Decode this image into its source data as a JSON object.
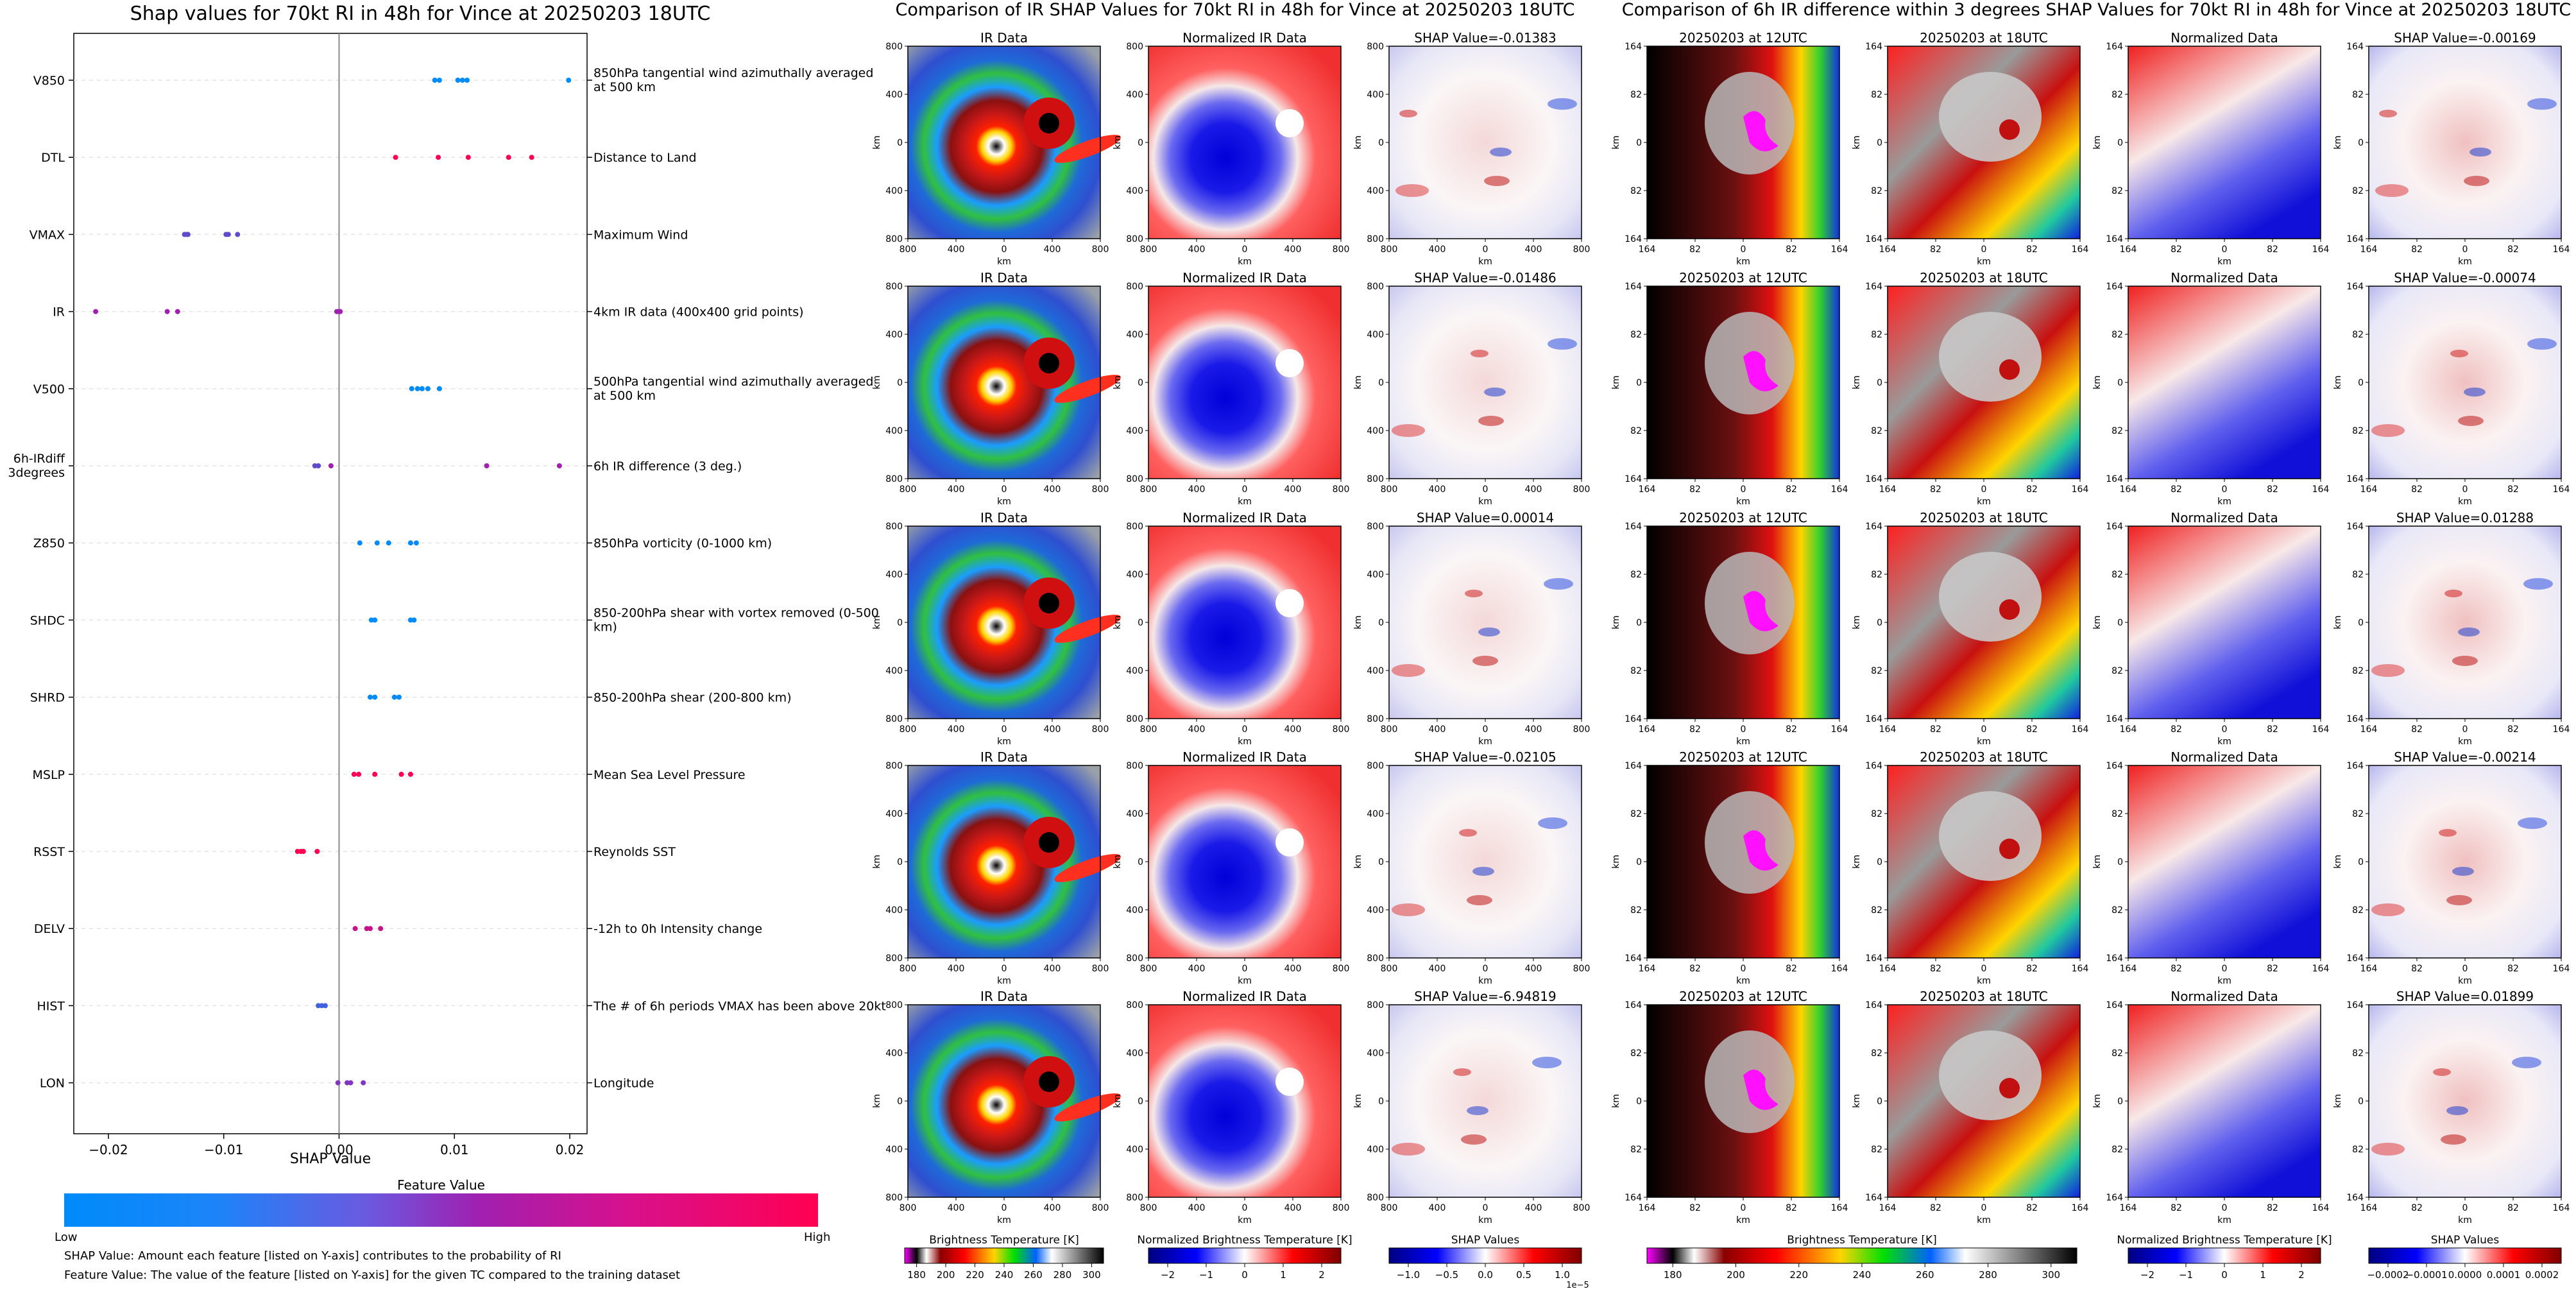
{
  "left_title": "Shap values for 70kt RI in 48h for Vince at 20250203 18UTC",
  "mid_title": "Comparison of IR SHAP Values for 70kt RI in 48h for Vince at 20250203 18UTC",
  "right_title": "Comparison of 6h IR difference within 3 degrees SHAP Values for 70kt RI in 48h for Vince at 20250203 18UTC",
  "colorbar": {
    "title": "Feature Value",
    "low": "Low",
    "high": "High"
  },
  "notes": [
    "SHAP Value: Amount each feature [listed on Y-axis] contributes to the probability of RI",
    "Feature Value: The value of the feature [listed on Y-axis] for the given TC compared to the training dataset"
  ],
  "colors": {
    "low": "#008bfb",
    "mid": "#a020b0",
    "high": "#ff0052"
  },
  "ir_panels": {
    "col_titles": [
      "IR Data",
      "Normalized IR Data"
    ],
    "shap_titles": [
      "SHAP Value=-0.01383",
      "SHAP Value=-0.01486",
      "SHAP Value=0.00014",
      "SHAP Value=-0.02105",
      "SHAP Value=-6.94819"
    ],
    "ytick_labels": [
      "800",
      "400",
      "0",
      "400",
      "800"
    ],
    "xtick_labels": [
      "800",
      "400",
      "0",
      "400",
      "800"
    ],
    "axis_label": "km"
  },
  "diff_panels": {
    "col_titles": [
      "20250203 at 12UTC",
      "20250203 at 18UTC",
      "Normalized Data"
    ],
    "shap_titles": [
      "SHAP Value=-0.00169",
      "SHAP Value=-0.00074",
      "SHAP Value=0.01288",
      "SHAP Value=-0.00214",
      "SHAP Value=0.01899"
    ],
    "ytick_labels": [
      "164",
      "82",
      "0",
      "82",
      "164"
    ],
    "xtick_labels": [
      "164",
      "82",
      "0",
      "82",
      "164"
    ],
    "axis_label": "km"
  },
  "bottom_colorbars": [
    {
      "label": "Brightness Temperature [K]",
      "ticks": [
        "180",
        "200",
        "220",
        "240",
        "260",
        "280",
        "300"
      ],
      "scale": "ir"
    },
    {
      "label": "Normalized Brightness Temperature [K]",
      "ticks": [
        "−2",
        "−1",
        "0",
        "1",
        "2"
      ],
      "scale": "bwr"
    },
    {
      "label": "SHAP Values",
      "ticks": [
        "−1.0",
        "−0.5",
        "0.0",
        "0.5",
        "1.0"
      ],
      "scale": "bwr",
      "offset": "1e−5"
    },
    {
      "label": "Brightness Temperature [K]",
      "ticks": [
        "180",
        "200",
        "220",
        "240",
        "260",
        "280",
        "300"
      ],
      "scale": "ir"
    },
    {
      "label": "Normalized Brightness Temperature [K]",
      "ticks": [
        "−2",
        "−1",
        "0",
        "1",
        "2"
      ],
      "scale": "bwr"
    },
    {
      "label": "SHAP Values",
      "ticks": [
        "−0.0002",
        "−0.0001",
        "0.0000",
        "0.0001",
        "0.0002"
      ],
      "scale": "bwr"
    }
  ],
  "chart_data": {
    "type": "scatter",
    "title": "Shap values for 70kt RI in 48h for Vince at 20250203 18UTC",
    "xlabel": "SHAP Value",
    "ylabel": "",
    "xlim": [
      -0.023,
      0.0215
    ],
    "xticks": [
      "−0.02",
      "−0.01",
      "0.00",
      "0.01",
      "0.02"
    ],
    "xtick_values": [
      -0.02,
      -0.01,
      0,
      0.01,
      0.02
    ],
    "categories": [
      "V850",
      "DTL",
      "VMAX",
      "IR",
      "V500",
      "6h-IRdiff 3degrees",
      "Z850",
      "SHDC",
      "SHRD",
      "MSLP",
      "RSST",
      "DELV",
      "HIST",
      "LON"
    ],
    "descriptions": [
      "850hPa tangential wind azimuthally averaged at 500 km",
      "Distance to Land",
      "Maximum Wind",
      "4km IR data (400x400 grid points)",
      "500hPa tangential wind azimuthally averaged at 500 km",
      "6h IR difference (3 deg.)",
      "850hPa vorticity (0-1000 km)",
      "850-200hPa shear with vortex removed (0-500 km)",
      "850-200hPa shear (200-800 km)",
      "Mean Sea Level Pressure",
      "Reynolds SST",
      "-12h to 0h Intensity change",
      "The # of 6h periods VMAX has been above 20kt",
      "Longitude"
    ],
    "points": [
      [
        [
          0.0083,
          0.0
        ],
        [
          0.0087,
          0.0
        ],
        [
          0.0103,
          0.0
        ],
        [
          0.0107,
          0.0
        ],
        [
          0.0111,
          0.0
        ],
        [
          0.0199,
          0.0
        ]
      ],
      [
        [
          0.0049,
          1.0
        ],
        [
          0.0086,
          1.0
        ],
        [
          0.0112,
          1.0
        ],
        [
          0.0147,
          1.0
        ],
        [
          0.0167,
          1.0
        ]
      ],
      [
        [
          -0.0134,
          0.3
        ],
        [
          -0.0132,
          0.3
        ],
        [
          -0.0131,
          0.3
        ],
        [
          -0.0098,
          0.3
        ],
        [
          -0.0096,
          0.3
        ],
        [
          -0.0088,
          0.3
        ]
      ],
      [
        [
          -0.0211,
          0.5
        ],
        [
          -0.0149,
          0.5
        ],
        [
          -0.014,
          0.5
        ],
        [
          -0.0002,
          0.5
        ],
        [
          0.0,
          0.5
        ],
        [
          0.0001,
          0.5
        ]
      ],
      [
        [
          0.0063,
          0.0
        ],
        [
          0.0068,
          0.0
        ],
        [
          0.0072,
          0.0
        ],
        [
          0.0077,
          0.0
        ],
        [
          0.0087,
          0.0
        ]
      ],
      [
        [
          -0.0021,
          0.3
        ],
        [
          -0.0018,
          0.3
        ],
        [
          -0.0007,
          0.5
        ],
        [
          0.0128,
          0.5
        ],
        [
          0.0191,
          0.5
        ]
      ],
      [
        [
          0.0018,
          0.0
        ],
        [
          0.0033,
          0.0
        ],
        [
          0.0043,
          0.0
        ],
        [
          0.0062,
          0.0
        ],
        [
          0.0067,
          0.0
        ]
      ],
      [
        [
          0.0028,
          0.0
        ],
        [
          0.0031,
          0.0
        ],
        [
          0.0062,
          0.0
        ],
        [
          0.0065,
          0.0
        ]
      ],
      [
        [
          0.0027,
          0.0
        ],
        [
          0.0031,
          0.0
        ],
        [
          0.0048,
          0.0
        ],
        [
          0.0052,
          0.0
        ]
      ],
      [
        [
          0.0013,
          1.0
        ],
        [
          0.0017,
          1.0
        ],
        [
          0.0031,
          1.0
        ],
        [
          0.0054,
          1.0
        ],
        [
          0.0062,
          1.0
        ]
      ],
      [
        [
          -0.0036,
          1.0
        ],
        [
          -0.0033,
          1.0
        ],
        [
          -0.0031,
          1.0
        ],
        [
          -0.0019,
          1.0
        ]
      ],
      [
        [
          0.0014,
          0.7
        ],
        [
          0.0024,
          0.7
        ],
        [
          0.0027,
          0.7
        ],
        [
          0.0036,
          0.7
        ]
      ],
      [
        [
          -0.0018,
          0.2
        ],
        [
          -0.0015,
          0.2
        ],
        [
          -0.0012,
          0.2
        ]
      ],
      [
        [
          -0.0001,
          0.4
        ],
        [
          0.0007,
          0.4
        ],
        [
          0.001,
          0.4
        ],
        [
          0.0021,
          0.4
        ]
      ]
    ]
  }
}
